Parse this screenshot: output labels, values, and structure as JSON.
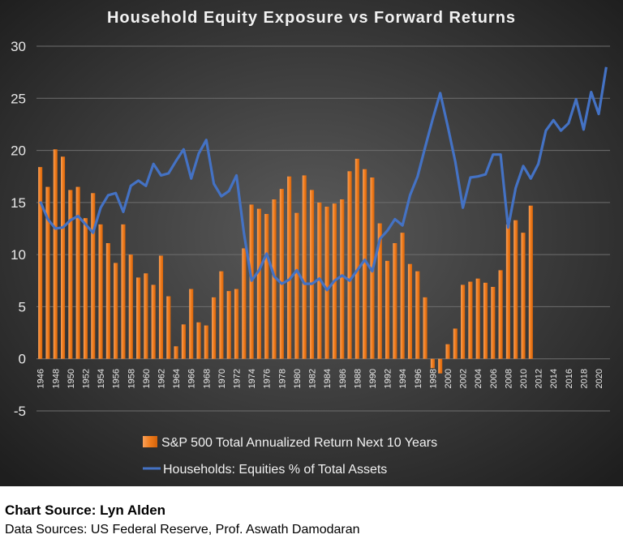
{
  "chart_data": {
    "type": "bar+line",
    "title": "Household Equity Exposure vs Forward Returns",
    "ylim": [
      -5,
      30
    ],
    "yticks": [
      -5,
      0,
      5,
      10,
      15,
      20,
      25,
      30
    ],
    "years": [
      1946,
      1947,
      1948,
      1949,
      1950,
      1951,
      1952,
      1953,
      1954,
      1955,
      1956,
      1957,
      1958,
      1959,
      1960,
      1961,
      1962,
      1963,
      1964,
      1965,
      1966,
      1967,
      1968,
      1969,
      1970,
      1971,
      1972,
      1973,
      1974,
      1975,
      1976,
      1977,
      1978,
      1979,
      1980,
      1981,
      1982,
      1983,
      1984,
      1985,
      1986,
      1987,
      1988,
      1989,
      1990,
      1991,
      1992,
      1993,
      1994,
      1995,
      1996,
      1997,
      1998,
      1999,
      2000,
      2001,
      2002,
      2003,
      2004,
      2005,
      2006,
      2007,
      2008,
      2009,
      2010,
      2011,
      2012,
      2013,
      2014,
      2015,
      2016,
      2017,
      2018,
      2019,
      2020,
      2021
    ],
    "xtick_labels": [
      "1946",
      "1948",
      "1950",
      "1952",
      "1954",
      "1956",
      "1958",
      "1960",
      "1962",
      "1964",
      "1966",
      "1968",
      "1970",
      "1972",
      "1974",
      "1976",
      "1978",
      "1980",
      "1982",
      "1984",
      "1986",
      "1988",
      "1990",
      "1992",
      "1994",
      "1996",
      "1998",
      "2000",
      "2002",
      "2004",
      "2006",
      "2008",
      "2010",
      "2012",
      "2014",
      "2016",
      "2018",
      "2020"
    ],
    "grid": true,
    "legend_position": "bottom",
    "series": [
      {
        "name": "S&P 500 Total Annualized Return Next 10 Years",
        "kind": "bar",
        "color": "#f07c1c",
        "values": [
          18.4,
          16.5,
          20.1,
          19.4,
          16.2,
          16.5,
          13.5,
          15.9,
          12.9,
          11.1,
          9.2,
          12.9,
          10.0,
          7.8,
          8.2,
          7.1,
          9.9,
          6.0,
          1.2,
          3.3,
          6.7,
          3.5,
          3.2,
          5.9,
          8.4,
          6.5,
          6.7,
          10.6,
          14.8,
          14.4,
          13.9,
          15.3,
          16.3,
          17.5,
          14.0,
          17.6,
          16.2,
          15.0,
          14.6,
          14.9,
          15.3,
          18.0,
          19.2,
          18.2,
          17.4,
          13.0,
          9.4,
          11.1,
          12.1,
          9.1,
          8.4,
          5.9,
          -0.9,
          -1.4,
          1.4,
          2.9,
          7.1,
          7.4,
          7.7,
          7.3,
          6.9,
          8.5,
          12.9,
          13.3,
          12.1,
          14.7
        ]
      },
      {
        "name": "Households: Equities % of Total Assets",
        "kind": "line",
        "color": "#4472c4",
        "values": [
          15.1,
          13.4,
          12.5,
          12.6,
          13.3,
          13.7,
          12.9,
          12.1,
          14.5,
          15.7,
          15.9,
          14.1,
          16.6,
          17.1,
          16.6,
          18.7,
          17.6,
          17.8,
          19.0,
          20.1,
          17.3,
          19.7,
          21.0,
          16.8,
          15.6,
          16.1,
          17.6,
          12.0,
          7.5,
          8.5,
          10.1,
          7.9,
          7.2,
          7.6,
          8.5,
          7.2,
          7.2,
          7.7,
          6.6,
          7.5,
          8.0,
          7.5,
          8.5,
          9.5,
          8.4,
          11.5,
          12.3,
          13.4,
          12.8,
          15.7,
          17.5,
          20.3,
          23.0,
          25.5,
          22.3,
          18.9,
          14.5,
          17.4,
          17.5,
          17.7,
          19.6,
          19.6,
          12.6,
          16.4,
          18.5,
          17.3,
          18.7,
          21.9,
          22.9,
          21.9,
          22.6,
          24.9,
          22.0,
          25.6,
          23.5,
          28.0
        ]
      }
    ]
  },
  "credits": {
    "source": "Chart Source: Lyn Alden",
    "data_sources": "Data Sources: US Federal Reserve, Prof. Aswath Damodaran"
  }
}
